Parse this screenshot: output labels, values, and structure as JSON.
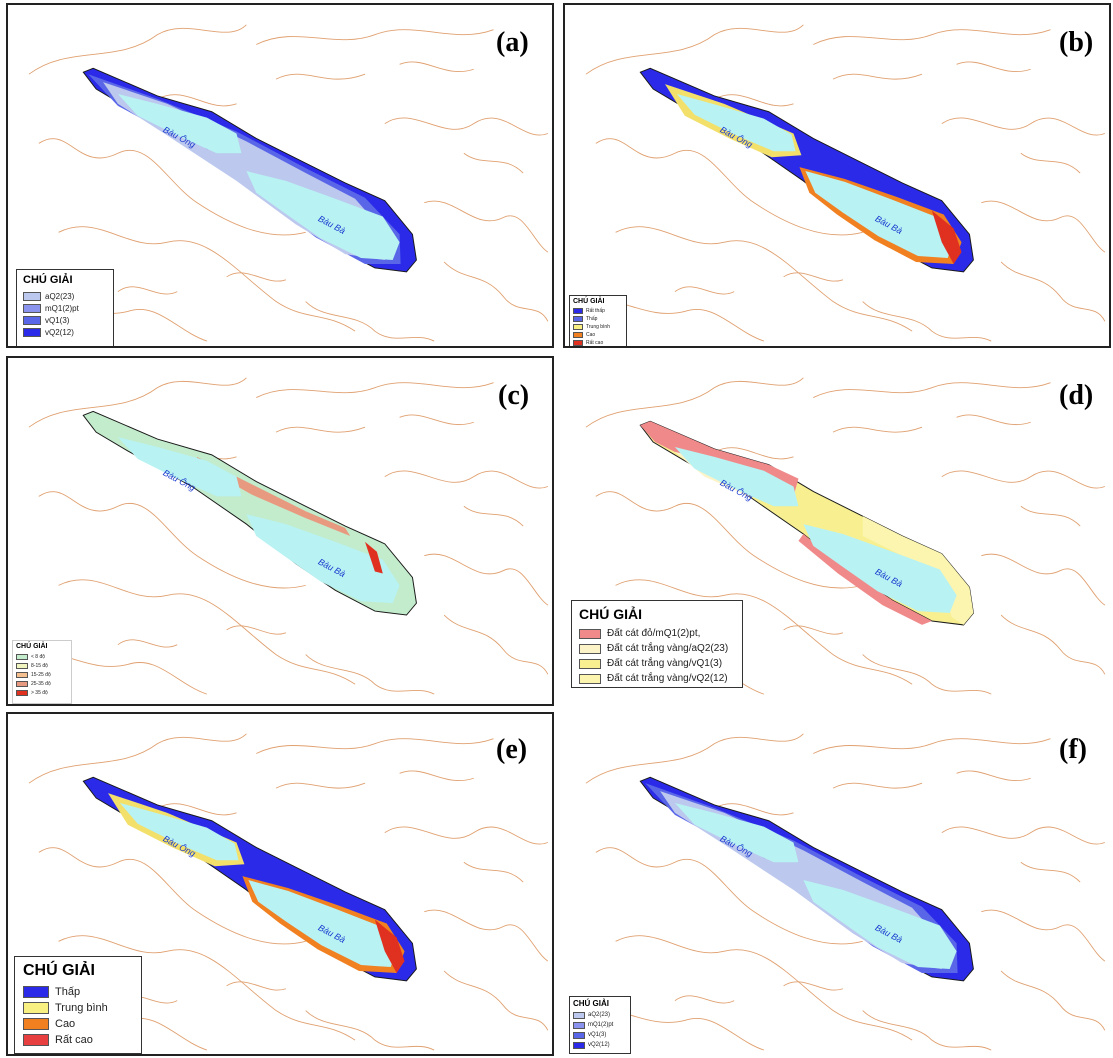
{
  "colors": {
    "contour": "#e0a070",
    "outline": "#1a1a1a",
    "lake": "#b8f2f2",
    "pale_blue": "#bcc8ee",
    "mid_blue": "#8a94ee",
    "blue": "#5a66e8",
    "dark_blue": "#2a2ae8",
    "green": "#c2eccc",
    "salmon": "#e89a80",
    "red": "#e03020",
    "pink": "#f08a8a",
    "cream": "#fdf3c8",
    "yellow": "#f8f090",
    "light_yellow": "#fbf5b0",
    "orange": "#f08020",
    "yellow2": "#f8f080"
  },
  "lake_labels": {
    "north": "Bàu Ông",
    "south": "Bàu Bà"
  },
  "panels": [
    {
      "label": "(a)",
      "legend": {
        "title": "CHÚ GIẢI",
        "items": [
          {
            "text": "aQ2(23)",
            "color": "#bcc8ee"
          },
          {
            "text": "mQ1(2)pt",
            "color": "#8a94ee"
          },
          {
            "text": "vQ1(3)",
            "color": "#5a66e8"
          },
          {
            "text": "vQ2(12)",
            "color": "#2a2ae8"
          }
        ]
      }
    },
    {
      "label": "(b)",
      "legend": {
        "title": "CHÚ GIẢI",
        "items": [
          {
            "text": "Rất thấp",
            "color": "#2a2ae8"
          },
          {
            "text": "Thấp",
            "color": "#5a66e8"
          },
          {
            "text": "Trung bình",
            "color": "#f8f080"
          },
          {
            "text": "Cao",
            "color": "#f08020"
          },
          {
            "text": "Rất cao",
            "color": "#e03020"
          }
        ]
      }
    },
    {
      "label": "(c)",
      "legend": {
        "title": "CHÚ GIẢI",
        "items": [
          {
            "text": "< 8 độ",
            "color": "#c2eccc"
          },
          {
            "text": "8-15 độ",
            "color": "#f0f4c0"
          },
          {
            "text": "15-25 độ",
            "color": "#f4c090"
          },
          {
            "text": "25-35 độ",
            "color": "#e89a80"
          },
          {
            "text": "> 35 độ",
            "color": "#e03020"
          }
        ]
      }
    },
    {
      "label": "(d)",
      "legend": {
        "title": "CHÚ GIẢI",
        "items": [
          {
            "text": "Đất cát đỏ/mQ1(2)pt,",
            "color": "#f08a8a"
          },
          {
            "text": "Đất cát trắng vàng/aQ2(23)",
            "color": "#fdf3c8"
          },
          {
            "text": "Đất cát trắng vàng/vQ1(3)",
            "color": "#f8f090"
          },
          {
            "text": "Đất cát trắng vàng/vQ2(12)",
            "color": "#fbf5b0"
          }
        ]
      }
    },
    {
      "label": "(e)",
      "legend": {
        "title": "CHÚ GIẢI",
        "items": [
          {
            "text": "Thấp",
            "color": "#2a2ae8"
          },
          {
            "text": "Trung bình",
            "color": "#f8f080"
          },
          {
            "text": "Cao",
            "color": "#f08020"
          },
          {
            "text": "Rất cao",
            "color": "#e84040"
          }
        ]
      }
    },
    {
      "label": "(f)",
      "legend": {
        "title": "CHÚ GIẢI",
        "items": [
          {
            "text": "aQ2(23)",
            "color": "#bcc8ee"
          },
          {
            "text": "mQ1(2)pt",
            "color": "#8a94ee"
          },
          {
            "text": "vQ1(3)",
            "color": "#5a66e8"
          },
          {
            "text": "vQ2(12)",
            "color": "#2a2ae8"
          }
        ]
      }
    }
  ]
}
